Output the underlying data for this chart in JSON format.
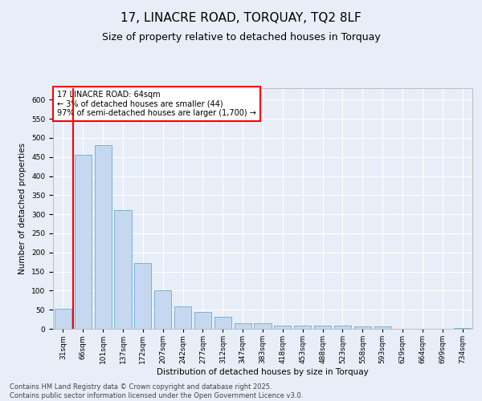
{
  "title": "17, LINACRE ROAD, TORQUAY, TQ2 8LF",
  "subtitle": "Size of property relative to detached houses in Torquay",
  "xlabel": "Distribution of detached houses by size in Torquay",
  "ylabel": "Number of detached properties",
  "categories": [
    "31sqm",
    "66sqm",
    "101sqm",
    "137sqm",
    "172sqm",
    "207sqm",
    "242sqm",
    "277sqm",
    "312sqm",
    "347sqm",
    "383sqm",
    "418sqm",
    "453sqm",
    "488sqm",
    "523sqm",
    "558sqm",
    "593sqm",
    "629sqm",
    "664sqm",
    "699sqm",
    "734sqm"
  ],
  "values": [
    53,
    456,
    480,
    311,
    172,
    100,
    58,
    44,
    31,
    14,
    14,
    8,
    8,
    9,
    8,
    7,
    7,
    1,
    1,
    1,
    3
  ],
  "bar_color": "#c5d8f0",
  "bar_edge_color": "#6aaad4",
  "vline_color": "red",
  "vline_x": 0.5,
  "annotation_box_text": "17 LINACRE ROAD: 64sqm\n← 3% of detached houses are smaller (44)\n97% of semi-detached houses are larger (1,700) →",
  "annotation_box_color": "white",
  "annotation_box_edge_color": "red",
  "ylim": [
    0,
    630
  ],
  "yticks": [
    0,
    50,
    100,
    150,
    200,
    250,
    300,
    350,
    400,
    450,
    500,
    550,
    600
  ],
  "background_color": "#e8eef7",
  "plot_bg_color": "#e8eef7",
  "footer_line1": "Contains HM Land Registry data © Crown copyright and database right 2025.",
  "footer_line2": "Contains public sector information licensed under the Open Government Licence v3.0.",
  "title_fontsize": 11,
  "subtitle_fontsize": 9,
  "tick_fontsize": 6.5,
  "label_fontsize": 7.5,
  "annotation_fontsize": 7,
  "footer_fontsize": 6
}
